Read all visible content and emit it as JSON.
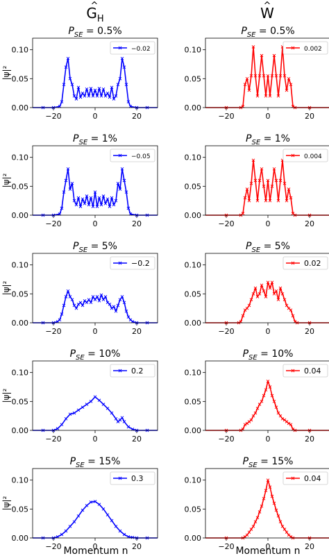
{
  "columns": [
    {
      "header": "Ĝ_H",
      "header_base": "G",
      "header_sub": "H",
      "color": "#0000ff"
    },
    {
      "header": "Ŵ",
      "header_base": "W",
      "header_sub": "",
      "color": "#ff0000"
    }
  ],
  "xlabel": "Momentum n",
  "ylabel": "|ψ|²",
  "chart_data": [
    {
      "type": "line",
      "title": "P_SE = 0.5%",
      "legend": "-0.02",
      "color": "#0000ff",
      "xlim": [
        -30,
        30
      ],
      "ylim": [
        0,
        0.12
      ],
      "xticks": [
        -20,
        0,
        20
      ],
      "yticks": [
        "0.00",
        "0.05",
        "0.10"
      ],
      "x": [
        -30,
        -25,
        -20,
        -17,
        -16,
        -15,
        -14,
        -13,
        -12,
        -11,
        -10,
        -9,
        -8,
        -7,
        -6,
        -5,
        -4,
        -3,
        -2,
        -1,
        0,
        1,
        2,
        3,
        4,
        5,
        6,
        7,
        8,
        9,
        10,
        11,
        12,
        13,
        14,
        15,
        16,
        17,
        20,
        25,
        30
      ],
      "y": [
        0,
        0,
        0,
        0.002,
        0.01,
        0.04,
        0.07,
        0.085,
        0.05,
        0.04,
        0.02,
        0.015,
        0.035,
        0.018,
        0.025,
        0.02,
        0.032,
        0.02,
        0.033,
        0.02,
        0.03,
        0.02,
        0.033,
        0.02,
        0.032,
        0.02,
        0.025,
        0.018,
        0.035,
        0.015,
        0.02,
        0.04,
        0.05,
        0.085,
        0.07,
        0.04,
        0.01,
        0.002,
        0,
        0,
        0
      ]
    },
    {
      "type": "line",
      "title": "P_SE = 0.5%",
      "legend": "0.002",
      "color": "#ff0000",
      "xlim": [
        -30,
        30
      ],
      "ylim": [
        0,
        0.12
      ],
      "xticks": [
        -20,
        0,
        20
      ],
      "yticks": [
        "0.00",
        "0.05",
        "0.10"
      ],
      "x": [
        -30,
        -20,
        -13,
        -12,
        -11,
        -10,
        -9,
        -8,
        -7,
        -6,
        -5,
        -4,
        -3,
        -2,
        -1,
        0,
        1,
        2,
        3,
        4,
        5,
        6,
        7,
        8,
        9,
        10,
        11,
        12,
        13,
        20,
        30
      ],
      "y": [
        0,
        0,
        0,
        0.002,
        0.04,
        0.05,
        0.03,
        0.055,
        0.105,
        0.055,
        0.02,
        0.055,
        0.09,
        0.055,
        0.02,
        0.055,
        0.02,
        0.055,
        0.09,
        0.055,
        0.02,
        0.055,
        0.105,
        0.055,
        0.03,
        0.05,
        0.04,
        0.002,
        0,
        0,
        0
      ]
    },
    {
      "type": "line",
      "title": "P_SE = 1%",
      "legend": "-0.05",
      "color": "#0000ff",
      "xlim": [
        -30,
        30
      ],
      "ylim": [
        0,
        0.12
      ],
      "xticks": [
        -20,
        0,
        20
      ],
      "yticks": [
        "0.00",
        "0.05",
        "0.10"
      ],
      "x": [
        -30,
        -25,
        -20,
        -17,
        -16,
        -15,
        -14,
        -13,
        -12,
        -11,
        -10,
        -9,
        -8,
        -7,
        -6,
        -5,
        -4,
        -3,
        -2,
        -1,
        0,
        1,
        2,
        3,
        4,
        5,
        6,
        7,
        8,
        9,
        10,
        11,
        12,
        13,
        14,
        15,
        16,
        17,
        20,
        25,
        30
      ],
      "y": [
        0,
        0,
        0,
        0.002,
        0.012,
        0.04,
        0.06,
        0.08,
        0.045,
        0.055,
        0.025,
        0.018,
        0.03,
        0.015,
        0.028,
        0.02,
        0.033,
        0.018,
        0.03,
        0.015,
        0.04,
        0.015,
        0.03,
        0.018,
        0.033,
        0.02,
        0.028,
        0.015,
        0.03,
        0.018,
        0.025,
        0.055,
        0.045,
        0.08,
        0.06,
        0.04,
        0.012,
        0.002,
        0,
        0,
        0
      ]
    },
    {
      "type": "line",
      "title": "P_SE = 1%",
      "legend": "0.004",
      "color": "#ff0000",
      "xlim": [
        -30,
        30
      ],
      "ylim": [
        0,
        0.12
      ],
      "xticks": [
        -20,
        0,
        20
      ],
      "yticks": [
        "0.00",
        "0.05",
        "0.10"
      ],
      "x": [
        -30,
        -20,
        -13,
        -12,
        -11,
        -10,
        -9,
        -8,
        -7,
        -6,
        -5,
        -4,
        -3,
        -2,
        -1,
        0,
        1,
        2,
        3,
        4,
        5,
        6,
        7,
        8,
        9,
        10,
        11,
        12,
        13,
        20,
        30
      ],
      "y": [
        0,
        0,
        0,
        0.003,
        0.03,
        0.045,
        0.025,
        0.055,
        0.095,
        0.06,
        0.025,
        0.06,
        0.08,
        0.05,
        0.025,
        0.06,
        0.025,
        0.05,
        0.08,
        0.06,
        0.025,
        0.06,
        0.095,
        0.055,
        0.025,
        0.045,
        0.03,
        0.003,
        0,
        0,
        0
      ]
    },
    {
      "type": "line",
      "title": "P_SE = 5%",
      "legend": "-0.2",
      "color": "#0000ff",
      "xlim": [
        -30,
        30
      ],
      "ylim": [
        0,
        0.12
      ],
      "xticks": [
        -20,
        0,
        20
      ],
      "yticks": [
        "0.00",
        "0.05",
        "0.10"
      ],
      "x": [
        -30,
        -25,
        -20,
        -18,
        -17,
        -16,
        -15,
        -14,
        -13,
        -12,
        -11,
        -10,
        -9,
        -8,
        -7,
        -6,
        -5,
        -4,
        -3,
        -2,
        -1,
        0,
        1,
        2,
        3,
        4,
        5,
        6,
        7,
        8,
        9,
        10,
        11,
        12,
        13,
        14,
        15,
        16,
        17,
        18,
        20,
        25,
        30
      ],
      "y": [
        0,
        0,
        0,
        0.002,
        0.005,
        0.015,
        0.03,
        0.045,
        0.055,
        0.045,
        0.04,
        0.03,
        0.025,
        0.032,
        0.035,
        0.03,
        0.038,
        0.035,
        0.04,
        0.035,
        0.045,
        0.04,
        0.045,
        0.038,
        0.048,
        0.04,
        0.045,
        0.035,
        0.032,
        0.025,
        0.028,
        0.02,
        0.03,
        0.04,
        0.045,
        0.035,
        0.02,
        0.01,
        0.005,
        0.002,
        0,
        0,
        0
      ]
    },
    {
      "type": "line",
      "title": "P_SE = 5%",
      "legend": "0.02",
      "color": "#ff0000",
      "xlim": [
        -30,
        30
      ],
      "ylim": [
        0,
        0.12
      ],
      "xticks": [
        -20,
        0,
        20
      ],
      "yticks": [
        "0.00",
        "0.05",
        "0.10"
      ],
      "x": [
        -30,
        -20,
        -14,
        -13,
        -12,
        -11,
        -10,
        -9,
        -8,
        -7,
        -6,
        -5,
        -4,
        -3,
        -2,
        -1,
        0,
        1,
        2,
        3,
        4,
        5,
        6,
        7,
        8,
        9,
        10,
        11,
        12,
        13,
        14,
        20,
        30
      ],
      "y": [
        0,
        0,
        0,
        0.002,
        0.012,
        0.022,
        0.025,
        0.03,
        0.04,
        0.05,
        0.06,
        0.045,
        0.05,
        0.065,
        0.055,
        0.045,
        0.07,
        0.06,
        0.07,
        0.05,
        0.055,
        0.04,
        0.06,
        0.05,
        0.04,
        0.03,
        0.025,
        0.022,
        0.012,
        0.002,
        0,
        0,
        0
      ]
    },
    {
      "type": "line",
      "title": "P_SE = 10%",
      "legend": "0.2",
      "color": "#0000ff",
      "xlim": [
        -30,
        30
      ],
      "ylim": [
        0,
        0.12
      ],
      "xticks": [
        -20,
        0,
        20
      ],
      "yticks": [
        "0.00",
        "0.05",
        "0.10"
      ],
      "x": [
        -30,
        -25,
        -20,
        -18,
        -16,
        -14,
        -12,
        -10,
        -8,
        -6,
        -4,
        -2,
        0,
        2,
        4,
        6,
        8,
        10,
        11,
        12,
        13,
        14,
        16,
        18,
        20,
        25,
        30
      ],
      "y": [
        0,
        0,
        0,
        0.003,
        0.01,
        0.02,
        0.028,
        0.03,
        0.035,
        0.04,
        0.045,
        0.05,
        0.058,
        0.052,
        0.045,
        0.038,
        0.03,
        0.02,
        0.015,
        0.018,
        0.022,
        0.015,
        0.006,
        0.002,
        0,
        0,
        0
      ]
    },
    {
      "type": "line",
      "title": "P_SE = 10%",
      "legend": "0.04",
      "color": "#ff0000",
      "xlim": [
        -30,
        30
      ],
      "ylim": [
        0,
        0.12
      ],
      "xticks": [
        -20,
        0,
        20
      ],
      "yticks": [
        "0.00",
        "0.05",
        "0.10"
      ],
      "x": [
        -30,
        -20,
        -13,
        -12,
        -11,
        -10,
        -9,
        -8,
        -7,
        -6,
        -5,
        -4,
        -3,
        -2,
        -1,
        0,
        1,
        2,
        3,
        4,
        5,
        6,
        7,
        8,
        9,
        10,
        11,
        12,
        13,
        20,
        30
      ],
      "y": [
        0,
        0,
        0,
        0.002,
        0.01,
        0.012,
        0.015,
        0.018,
        0.025,
        0.03,
        0.038,
        0.045,
        0.05,
        0.06,
        0.07,
        0.085,
        0.075,
        0.06,
        0.05,
        0.04,
        0.03,
        0.025,
        0.02,
        0.018,
        0.015,
        0.012,
        0.01,
        0.002,
        0,
        0,
        0
      ]
    },
    {
      "type": "line",
      "title": "P_SE = 15%",
      "legend": "0.3",
      "color": "#0000ff",
      "xlim": [
        -30,
        30
      ],
      "ylim": [
        0,
        0.12
      ],
      "xticks": [
        -20,
        0,
        20
      ],
      "yticks": [
        "0.00",
        "0.05",
        "0.10"
      ],
      "x": [
        -30,
        -25,
        -20,
        -18,
        -16,
        -14,
        -12,
        -10,
        -8,
        -6,
        -4,
        -2,
        0,
        2,
        4,
        6,
        8,
        10,
        12,
        14,
        16,
        18,
        20,
        25,
        30
      ],
      "y": [
        0,
        0,
        0,
        0.002,
        0.006,
        0.012,
        0.02,
        0.028,
        0.038,
        0.048,
        0.056,
        0.062,
        0.063,
        0.058,
        0.05,
        0.04,
        0.03,
        0.02,
        0.012,
        0.006,
        0.002,
        0.001,
        0,
        0,
        0
      ]
    },
    {
      "type": "line",
      "title": "P_SE = 15%",
      "legend": "0.04",
      "color": "#ff0000",
      "xlim": [
        -30,
        30
      ],
      "ylim": [
        0,
        0.12
      ],
      "xticks": [
        -20,
        0,
        20
      ],
      "yticks": [
        "0.00",
        "0.05",
        "0.10"
      ],
      "x": [
        -30,
        -20,
        -12,
        -11,
        -10,
        -9,
        -8,
        -7,
        -6,
        -5,
        -4,
        -3,
        -2,
        -1,
        0,
        1,
        2,
        3,
        4,
        5,
        6,
        7,
        8,
        9,
        10,
        11,
        12,
        20,
        30
      ],
      "y": [
        0,
        0,
        0,
        0.002,
        0.005,
        0.01,
        0.015,
        0.02,
        0.028,
        0.035,
        0.045,
        0.055,
        0.068,
        0.082,
        0.1,
        0.088,
        0.072,
        0.06,
        0.048,
        0.038,
        0.028,
        0.02,
        0.015,
        0.01,
        0.005,
        0.002,
        0,
        0,
        0
      ]
    }
  ]
}
